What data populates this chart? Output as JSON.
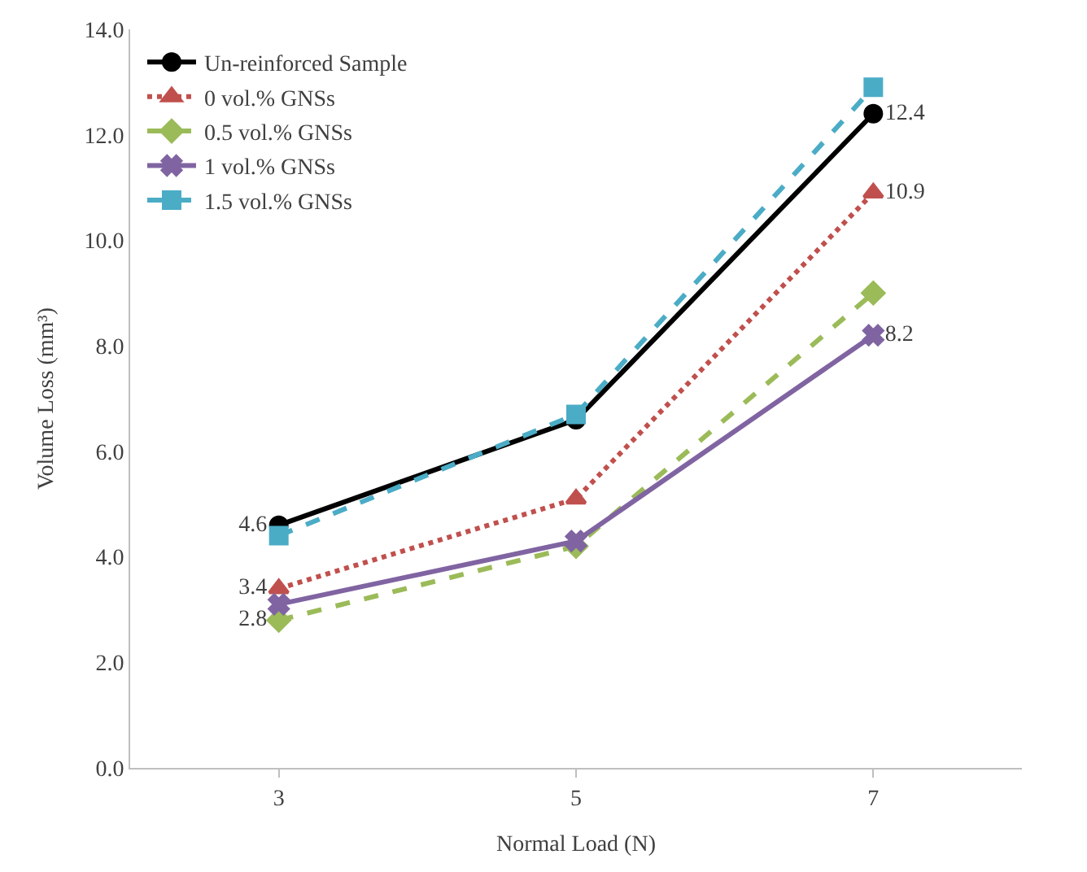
{
  "chart_data": {
    "type": "line",
    "xlabel": "Normal Load (N)",
    "ylabel": "Volume Loss (mm³)",
    "categories": [
      "3",
      "5",
      "7"
    ],
    "ylim": [
      0,
      14
    ],
    "yticks": [
      {
        "value": 0,
        "label": "0.0"
      },
      {
        "value": 2,
        "label": "2.0"
      },
      {
        "value": 4,
        "label": "4.0"
      },
      {
        "value": 6,
        "label": "6.0"
      },
      {
        "value": 8,
        "label": "8.0"
      },
      {
        "value": 10,
        "label": "10.0"
      },
      {
        "value": 12,
        "label": "12.0"
      },
      {
        "value": 14,
        "label": "14.0"
      }
    ],
    "legend": "top left",
    "series": [
      {
        "name": "Un-reinforced Sample",
        "color": "#000000",
        "values": [
          4.6,
          6.6,
          12.4
        ],
        "value_labels": [
          "4.6",
          null,
          "12.4"
        ],
        "marker": "circle",
        "line_style": "solid"
      },
      {
        "name": "0 vol.% GNSs",
        "color": "#c0504d",
        "values": [
          3.4,
          5.1,
          10.9
        ],
        "value_labels": [
          "3.4",
          null,
          "10.9"
        ],
        "marker": "triangle",
        "line_style": "dotted"
      },
      {
        "name": "0.5 vol.% GNSs",
        "color": "#9bbb59",
        "values": [
          2.8,
          4.2,
          9.0
        ],
        "value_labels": [
          "2.8",
          null,
          null
        ],
        "marker": "diamond",
        "line_style": "dashed"
      },
      {
        "name": "1 vol.% GNSs",
        "color": "#8064a2",
        "values": [
          3.1,
          4.3,
          8.2
        ],
        "value_labels": [
          null,
          null,
          "8.2"
        ],
        "marker": "cross",
        "line_style": "solid"
      },
      {
        "name": "1.5 vol.% GNSs",
        "color": "#4bacc6",
        "values": [
          4.4,
          6.7,
          12.9
        ],
        "marker": "square",
        "line_style": "dashed"
      }
    ]
  }
}
